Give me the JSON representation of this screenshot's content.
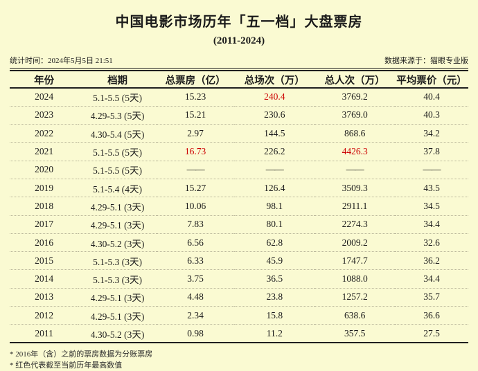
{
  "title": "中国电影市场历年「五一档」大盘票房",
  "subtitle": "(2011-2024)",
  "meta": {
    "stat_time": "统计时间：2024年5月5日 21:51",
    "source": "数据来源于：猫眼专业版"
  },
  "colors": {
    "background": "#FAFAD2",
    "highlight_red": "#CC0000",
    "text": "#1B1B1B",
    "rule": "#1F1F1F",
    "dotted_separator": "#B9B69A"
  },
  "footnotes": [
    "* 2016年（含）之前的票房数据为分账票房",
    "* 红色代表截至当前历年最高数值"
  ],
  "chart_data": {
    "type": "table",
    "title": "中国电影市场历年「五一档」大盘票房 (2011-2024)",
    "columns": [
      "年份",
      "档期",
      "总票房（亿）",
      "总场次（万）",
      "总人次（万）",
      "平均票价（元）"
    ],
    "field_order": [
      "year",
      "period",
      "box_office",
      "sessions",
      "admissions",
      "avg_price"
    ],
    "highlight_note": "red = 截至当前历年最高数值",
    "rows": [
      {
        "year": "2024",
        "period": "5.1-5.5 (5天)",
        "box_office": "15.23",
        "sessions": "240.4",
        "admissions": "3769.2",
        "avg_price": "40.4",
        "highlight": [
          "sessions"
        ]
      },
      {
        "year": "2023",
        "period": "4.29-5.3 (5天)",
        "box_office": "15.21",
        "sessions": "230.6",
        "admissions": "3769.0",
        "avg_price": "40.3",
        "highlight": []
      },
      {
        "year": "2022",
        "period": "4.30-5.4 (5天)",
        "box_office": "2.97",
        "sessions": "144.5",
        "admissions": "868.6",
        "avg_price": "34.2",
        "highlight": []
      },
      {
        "year": "2021",
        "period": "5.1-5.5 (5天)",
        "box_office": "16.73",
        "sessions": "226.2",
        "admissions": "4426.3",
        "avg_price": "37.8",
        "highlight": [
          "box_office",
          "admissions"
        ]
      },
      {
        "year": "2020",
        "period": "5.1-5.5 (5天)",
        "box_office": "——",
        "sessions": "——",
        "admissions": "——",
        "avg_price": "——",
        "highlight": []
      },
      {
        "year": "2019",
        "period": "5.1-5.4 (4天)",
        "box_office": "15.27",
        "sessions": "126.4",
        "admissions": "3509.3",
        "avg_price": "43.5",
        "highlight": []
      },
      {
        "year": "2018",
        "period": "4.29-5.1 (3天)",
        "box_office": "10.06",
        "sessions": "98.1",
        "admissions": "2911.1",
        "avg_price": "34.5",
        "highlight": []
      },
      {
        "year": "2017",
        "period": "4.29-5.1 (3天)",
        "box_office": "7.83",
        "sessions": "80.1",
        "admissions": "2274.3",
        "avg_price": "34.4",
        "highlight": []
      },
      {
        "year": "2016",
        "period": "4.30-5.2 (3天)",
        "box_office": "6.56",
        "sessions": "62.8",
        "admissions": "2009.2",
        "avg_price": "32.6",
        "highlight": []
      },
      {
        "year": "2015",
        "period": "5.1-5.3 (3天)",
        "box_office": "6.33",
        "sessions": "45.9",
        "admissions": "1747.7",
        "avg_price": "36.2",
        "highlight": []
      },
      {
        "year": "2014",
        "period": "5.1-5.3 (3天)",
        "box_office": "3.75",
        "sessions": "36.5",
        "admissions": "1088.0",
        "avg_price": "34.4",
        "highlight": []
      },
      {
        "year": "2013",
        "period": "4.29-5.1 (3天)",
        "box_office": "4.48",
        "sessions": "23.8",
        "admissions": "1257.2",
        "avg_price": "35.7",
        "highlight": []
      },
      {
        "year": "2012",
        "period": "4.29-5.1 (3天)",
        "box_office": "2.34",
        "sessions": "15.8",
        "admissions": "638.6",
        "avg_price": "36.6",
        "highlight": []
      },
      {
        "year": "2011",
        "period": "4.30-5.2 (3天)",
        "box_office": "0.98",
        "sessions": "11.2",
        "admissions": "357.5",
        "avg_price": "27.5",
        "highlight": []
      }
    ]
  }
}
